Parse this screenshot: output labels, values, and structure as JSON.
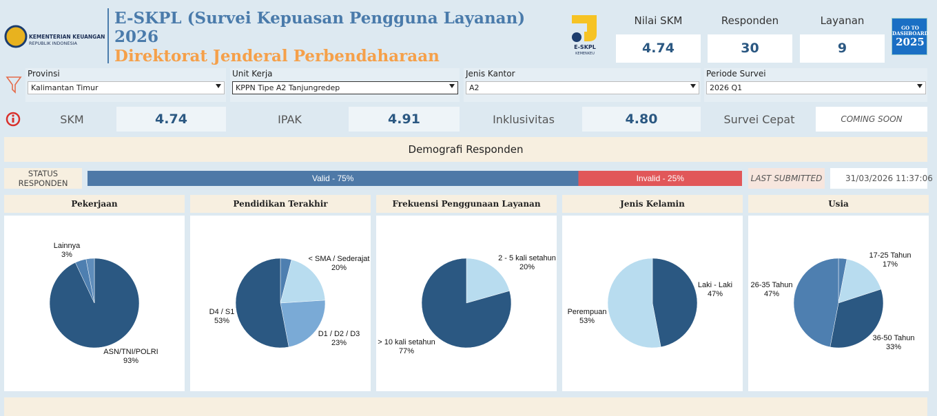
{
  "header": {
    "org": [
      "KEMENTERIAN KEUANGAN",
      "REPUBLIK INDONESIA"
    ],
    "title": "E-SKPL (Survei Kepuasan Pengguna Layanan)",
    "year": "2026",
    "subtitle": "Direktorat Jenderal Perbendaharaan",
    "logo": [
      "E-SKPL",
      "KEMENKEU"
    ]
  },
  "kpis": [
    {
      "label": "Nilai SKM",
      "value": 4.74
    },
    {
      "label": "Responden",
      "value": 30
    },
    {
      "label": "Layanan",
      "value": 9
    }
  ],
  "button": [
    "GO TO",
    "DASHBOARD",
    "2025"
  ],
  "filters": [
    {
      "label": "Provinsi",
      "value": "Kalimantan Timur"
    },
    {
      "label": "Unit Kerja",
      "value": "KPPN Tipe A2 Tanjungredep"
    },
    {
      "label": "Jenis Kantor",
      "value": "A2"
    },
    {
      "label": "Periode Survei",
      "value": "2026 Q1"
    }
  ],
  "scores": [
    {
      "label": "SKM",
      "value": 4.74
    },
    {
      "label": "IPAK",
      "value": 4.91
    },
    {
      "label": "Inklusivitas",
      "value": "4.80"
    },
    {
      "label": "Survei Cepat",
      "value": "COMING SOON"
    }
  ],
  "section_title": "Demografi Responden",
  "status": {
    "label": "STATUS RESPONDEN",
    "categories": [
      "Valid",
      "Invalid"
    ],
    "values": [
      75,
      25
    ],
    "value_labels": [
      "Valid - 75%",
      "Invalid - 25%"
    ],
    "colors": [
      "#4e79a7",
      "#e15759"
    ],
    "last_label": "LAST SUBMITTED",
    "last_value": "31/03/2026 11:37:06"
  },
  "chart_data": [
    {
      "type": "pie",
      "title": "Pekerjaan",
      "categories": [
        "ASN/TNI/POLRI",
        null,
        "Lainnya"
      ],
      "values": [
        93,
        4,
        3
      ],
      "value_labels": [
        "93%",
        null,
        "3%"
      ],
      "colors": [
        "#2b5882",
        "#4e7fb0",
        "#5f8dbb"
      ]
    },
    {
      "type": "pie",
      "title": "Pendidikan Terakhir",
      "categories": [
        null,
        "< SMA / Sederajat",
        "D1 / D2 / D3",
        "D4 / S1"
      ],
      "values": [
        4,
        20,
        23,
        53
      ],
      "value_labels": [
        null,
        "20%",
        "23%",
        "53%"
      ],
      "colors": [
        "#4e7fb0",
        "#b8dcef",
        "#7aaad6",
        "#2b5882"
      ]
    },
    {
      "type": "pie",
      "title": "Frekuensi Penggunaan Layanan",
      "categories": [
        "2 - 5 kali setahun",
        "> 10 kali setahun"
      ],
      "values": [
        20,
        77
      ],
      "value_labels": [
        "20%",
        "77%"
      ],
      "colors": [
        "#b8dcef",
        "#2b5882"
      ]
    },
    {
      "type": "pie",
      "title": "Jenis Kelamin",
      "categories": [
        "Laki - Laki",
        "Perempuan"
      ],
      "values": [
        47,
        53
      ],
      "value_labels": [
        "47%",
        "53%"
      ],
      "colors": [
        "#2b5882",
        "#b8dcef"
      ]
    },
    {
      "type": "pie",
      "title": "Usia",
      "categories": [
        null,
        "17-25 Tahun",
        "36-50 Tahun",
        "26-35 Tahun"
      ],
      "values": [
        3,
        17,
        33,
        47
      ],
      "value_labels": [
        null,
        "17%",
        "33%",
        "47%"
      ],
      "colors": [
        "#4e7fb0",
        "#b8dcef",
        "#2b5882",
        "#4e7fb0"
      ]
    }
  ]
}
